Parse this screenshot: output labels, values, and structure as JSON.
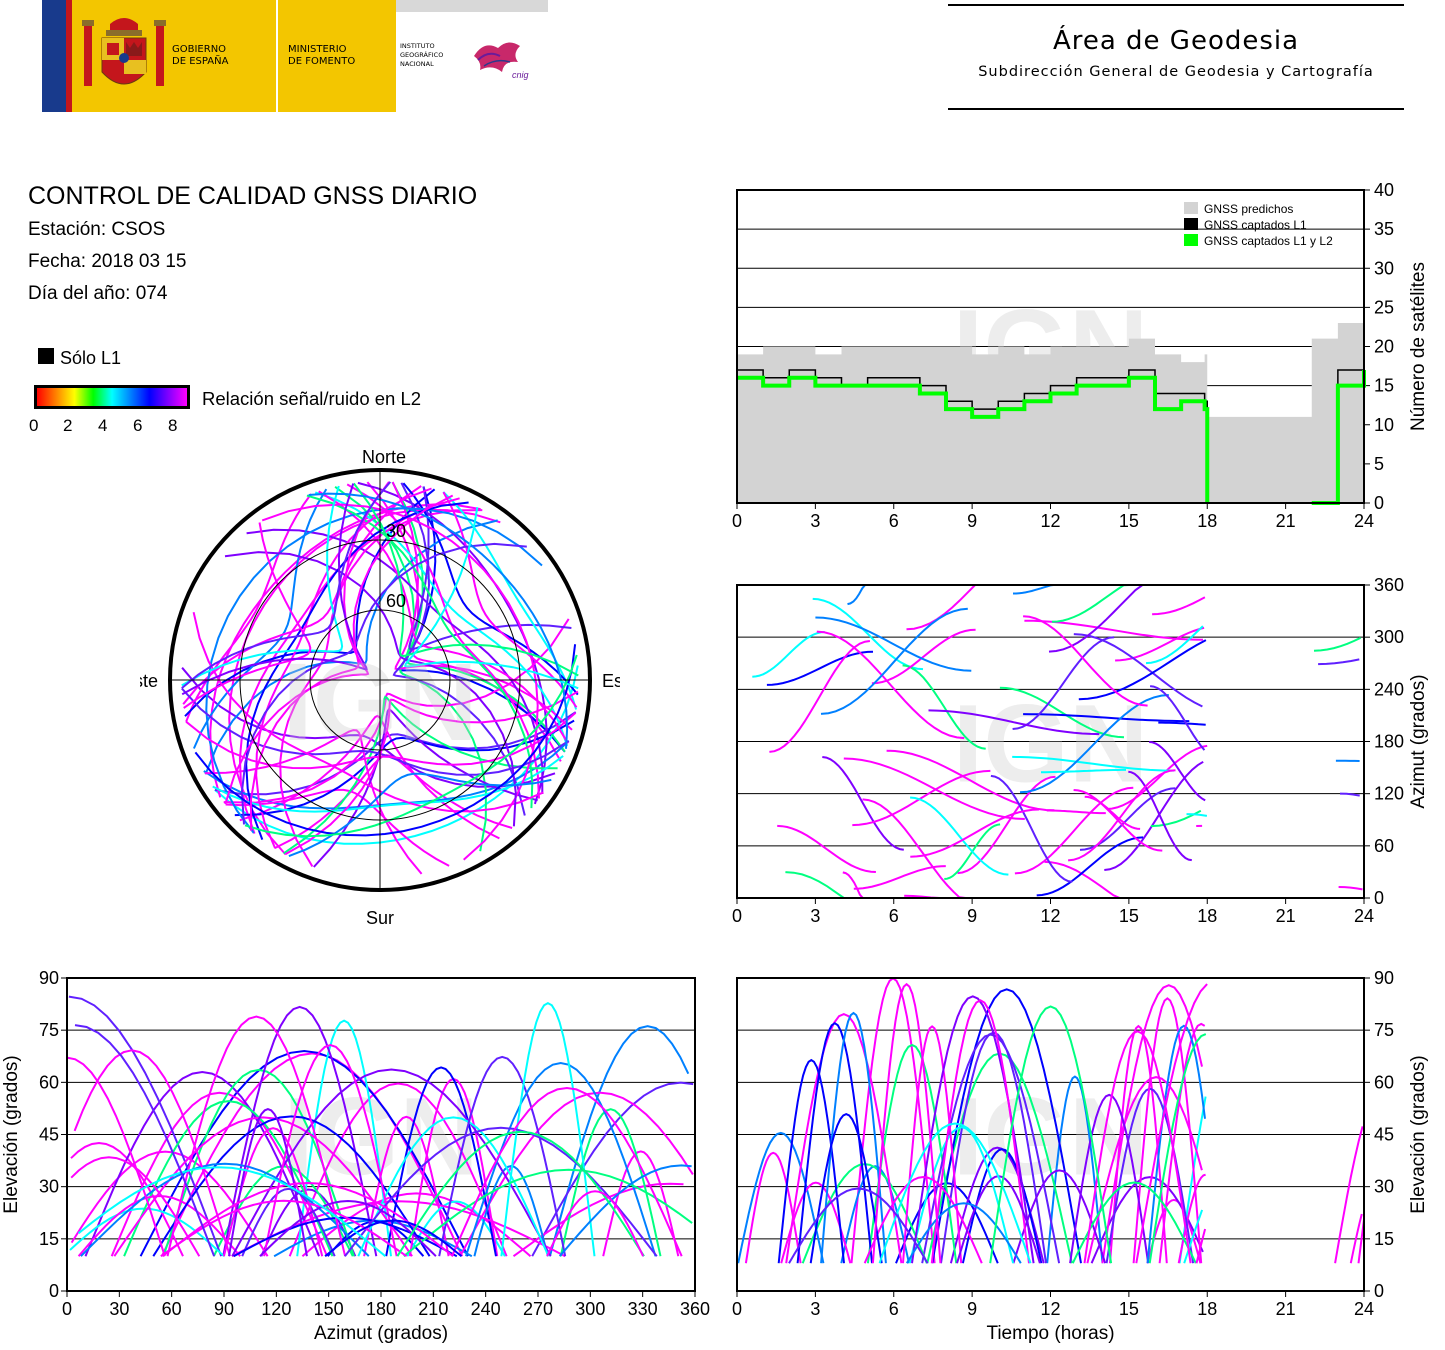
{
  "header": {
    "logo_left": {
      "gobierno": [
        "GOBIERNO",
        "DE ESPAÑA"
      ],
      "ministerio": [
        "MINISTERIO",
        "DE FOMENTO"
      ],
      "instituto": [
        "INSTITUTO",
        "GEOGRÁFICO",
        "NACIONAL"
      ],
      "cnig": "cnig",
      "colors": {
        "yellow": "#f3c600",
        "blue": "#183a8c",
        "red": "#c4161c",
        "grey": "#d8d8d8"
      }
    },
    "area_title": "Área de Geodesia",
    "area_subtitle": "Subdirección General de Geodesia y Cartografía"
  },
  "info": {
    "title": "CONTROL DE CALIDAD GNSS DIARIO",
    "station": "Estación: CSOS",
    "date": "Fecha: 2018 03 15",
    "doy": "Día del año: 074"
  },
  "legend": {
    "only_l1": "Sólo L1",
    "snr_label": "Relación señal/ruido en L2",
    "snr_ticks": [
      "0",
      "2",
      "4",
      "6",
      "8"
    ],
    "snr_colors": [
      "#ff0000",
      "#ff8000",
      "#ffff00",
      "#00ff00",
      "#00ffff",
      "#0080ff",
      "#0000ff",
      "#8000ff",
      "#ff00ff"
    ]
  },
  "watermark": "IGN",
  "chart_data": [
    {
      "id": "polar",
      "type": "scatter",
      "title": "",
      "labels": {
        "north": "Norte",
        "south": "Sur",
        "east": "Este",
        "west": "Oeste"
      },
      "ring_labels": [
        "30",
        "60"
      ],
      "ring_elevations": [
        0,
        30,
        60
      ]
    },
    {
      "id": "satellites",
      "type": "area",
      "x": [
        0,
        1,
        2,
        3,
        4,
        5,
        6,
        7,
        8,
        9,
        10,
        11,
        12,
        13,
        14,
        15,
        16,
        17,
        17.9,
        18,
        19,
        20,
        21,
        22,
        23,
        24
      ],
      "series": [
        {
          "name": "GNSS predichos",
          "color": "#d3d3d3",
          "values": [
            19,
            20,
            20,
            19,
            20,
            20,
            20,
            20,
            20,
            19,
            20,
            19,
            20,
            20,
            20,
            21,
            19,
            18,
            19,
            11,
            11,
            11,
            11,
            21,
            23,
            21
          ]
        },
        {
          "name": "GNSS captados L1",
          "color": "#000000",
          "values": [
            17,
            16,
            17,
            16,
            15,
            16,
            16,
            15,
            13,
            12,
            13,
            14,
            15,
            16,
            16,
            17,
            14,
            14,
            13,
            0,
            null,
            null,
            null,
            0,
            17,
            18
          ]
        },
        {
          "name": "GNSS captados L1 y L2",
          "color": "#00ff00",
          "values": [
            16,
            15,
            16,
            15,
            15,
            15,
            15,
            14,
            12,
            11,
            12,
            13,
            14,
            15,
            15,
            16,
            12,
            13,
            12,
            0,
            null,
            null,
            null,
            0,
            15,
            17
          ]
        }
      ],
      "xlim": [
        0,
        24
      ],
      "ylim": [
        0,
        40
      ],
      "xticks": [
        "0",
        "3",
        "6",
        "9",
        "12",
        "15",
        "18",
        "21",
        "24"
      ],
      "yticks": [
        "0",
        "5",
        "10",
        "15",
        "20",
        "25",
        "30",
        "35",
        "40"
      ],
      "ylabel": "Número de satélites",
      "grid": true,
      "legend_position": "top-right"
    },
    {
      "id": "azimuth_time",
      "type": "scatter",
      "xlim": [
        0,
        24
      ],
      "ylim": [
        0,
        360
      ],
      "xticks": [
        "0",
        "3",
        "6",
        "9",
        "12",
        "15",
        "18",
        "21",
        "24"
      ],
      "yticks": [
        "0",
        "60",
        "120",
        "180",
        "240",
        "300",
        "360"
      ],
      "ylabel": "Azimut (grados)",
      "grid": true
    },
    {
      "id": "elevation_azimuth",
      "type": "scatter",
      "xlim": [
        0,
        360
      ],
      "ylim": [
        0,
        90
      ],
      "xticks": [
        "0",
        "30",
        "60",
        "90",
        "120",
        "150",
        "180",
        "210",
        "240",
        "270",
        "300",
        "330",
        "360"
      ],
      "yticks": [
        "0",
        "15",
        "30",
        "45",
        "60",
        "75",
        "90"
      ],
      "xlabel": "Azimut (grados)",
      "ylabel": "Elevación (grados)",
      "grid": true
    },
    {
      "id": "elevation_time",
      "type": "scatter",
      "xlim": [
        0,
        24
      ],
      "ylim": [
        0,
        90
      ],
      "xticks": [
        "0",
        "3",
        "6",
        "9",
        "12",
        "15",
        "18",
        "21",
        "24"
      ],
      "yticks": [
        "0",
        "15",
        "30",
        "45",
        "60",
        "75",
        "90"
      ],
      "xlabel": "Tiempo (horas)",
      "ylabel": "Elevación (grados)",
      "grid": true
    }
  ]
}
